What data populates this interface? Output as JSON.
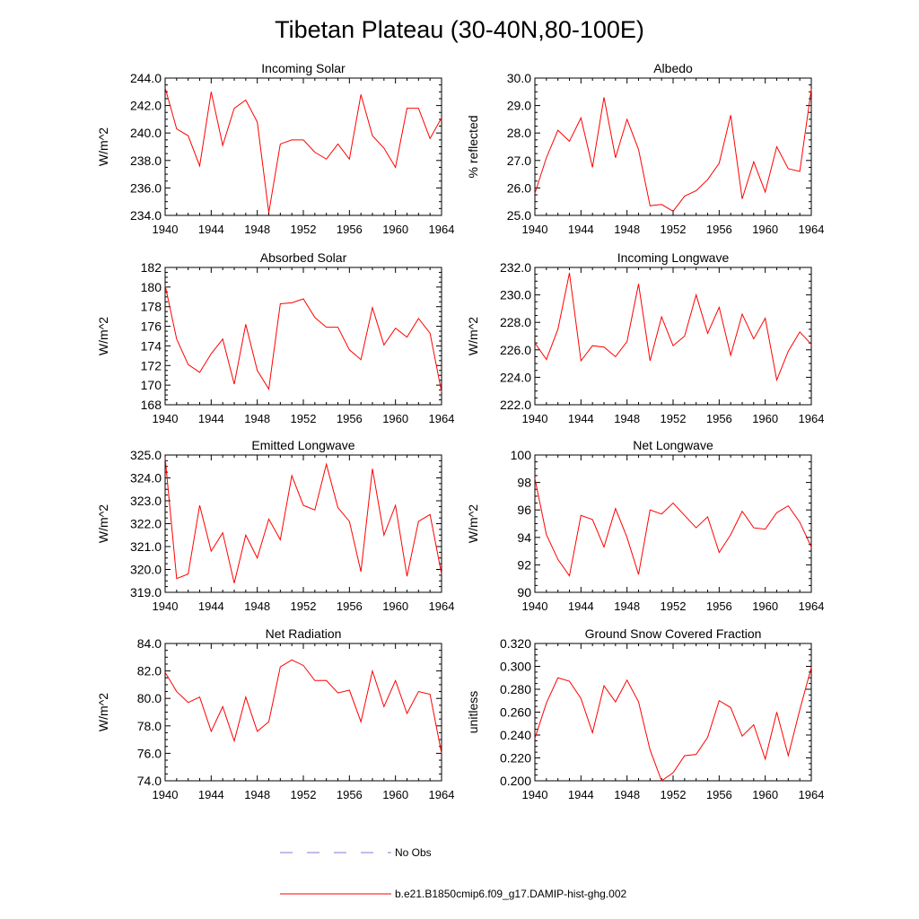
{
  "title": "Tibetan Plateau (30-40N,80-100E)",
  "colors": {
    "series": "#ff0000",
    "obs": "#7b7bd6",
    "axis": "#000000",
    "background": "#ffffff"
  },
  "legend": {
    "placement": "bottom-center",
    "items": [
      {
        "label": "No Obs",
        "style": "dashed",
        "color": "#7b7bd6"
      },
      {
        "label": "b.e21.B1850cmip6.f09_g17.DAMIP-hist-ghg.002",
        "style": "solid",
        "color": "#ff0000"
      }
    ]
  },
  "chart_data": [
    {
      "type": "line",
      "title": "Incoming Solar",
      "xlabel": "",
      "ylabel": "W/m^2",
      "xlim": [
        1940,
        1964
      ],
      "ylim": [
        234,
        244
      ],
      "xticks": [
        "1940",
        "1944",
        "1948",
        "1952",
        "1956",
        "1960",
        "1964"
      ],
      "yticks": [
        "234.0",
        "236.0",
        "238.0",
        "240.0",
        "242.0",
        "244.0"
      ],
      "x": [
        1940,
        1941,
        1942,
        1943,
        1944,
        1945,
        1946,
        1947,
        1948,
        1949,
        1950,
        1951,
        1952,
        1953,
        1954,
        1955,
        1956,
        1957,
        1958,
        1959,
        1960,
        1961,
        1962,
        1963,
        1964
      ],
      "series": [
        {
          "values": [
            243.3,
            240.3,
            239.8,
            237.6,
            243.0,
            239.1,
            241.8,
            242.4,
            240.8,
            234.2,
            239.2,
            239.5,
            239.5,
            238.6,
            238.1,
            239.2,
            238.1,
            242.8,
            239.8,
            238.9,
            237.5,
            241.8,
            241.8,
            239.6,
            241.1
          ]
        }
      ],
      "grid": false
    },
    {
      "type": "line",
      "title": "Albedo",
      "xlabel": "",
      "ylabel": "% reflected",
      "xlim": [
        1940,
        1964
      ],
      "ylim": [
        25,
        30
      ],
      "xticks": [
        "1940",
        "1944",
        "1948",
        "1952",
        "1956",
        "1960",
        "1964"
      ],
      "yticks": [
        "25.0",
        "26.0",
        "27.0",
        "28.0",
        "29.0",
        "30.0"
      ],
      "x": [
        1940,
        1941,
        1942,
        1943,
        1944,
        1945,
        1946,
        1947,
        1948,
        1949,
        1950,
        1951,
        1952,
        1953,
        1954,
        1955,
        1956,
        1957,
        1958,
        1959,
        1960,
        1961,
        1962,
        1963,
        1964
      ],
      "series": [
        {
          "values": [
            25.8,
            27.1,
            28.1,
            27.7,
            28.55,
            26.75,
            29.3,
            27.1,
            28.5,
            27.4,
            25.35,
            25.4,
            25.15,
            25.7,
            25.9,
            26.3,
            26.9,
            28.65,
            25.6,
            26.95,
            25.85,
            27.5,
            26.7,
            26.6,
            29.6
          ]
        }
      ],
      "grid": false
    },
    {
      "type": "line",
      "title": "Absorbed Solar",
      "xlabel": "",
      "ylabel": "W/m^2",
      "xlim": [
        1940,
        1964
      ],
      "ylim": [
        168,
        182
      ],
      "xticks": [
        "1940",
        "1944",
        "1948",
        "1952",
        "1956",
        "1960",
        "1964"
      ],
      "yticks": [
        "168",
        "170",
        "172",
        "174",
        "176",
        "178",
        "180",
        "182"
      ],
      "x": [
        1940,
        1941,
        1942,
        1943,
        1944,
        1945,
        1946,
        1947,
        1948,
        1949,
        1950,
        1951,
        1952,
        1953,
        1954,
        1955,
        1956,
        1957,
        1958,
        1959,
        1960,
        1961,
        1962,
        1963,
        1964
      ],
      "series": [
        {
          "values": [
            180.2,
            174.7,
            172.1,
            171.3,
            173.2,
            174.7,
            170.1,
            176.2,
            171.5,
            169.6,
            178.3,
            178.4,
            178.8,
            176.9,
            175.9,
            175.9,
            173.6,
            172.6,
            177.9,
            174.1,
            175.8,
            174.9,
            176.8,
            175.3,
            169.3
          ]
        }
      ],
      "grid": false
    },
    {
      "type": "line",
      "title": "Incoming Longwave",
      "xlabel": "",
      "ylabel": "W/m^2",
      "xlim": [
        1940,
        1964
      ],
      "ylim": [
        222,
        232
      ],
      "xticks": [
        "1940",
        "1944",
        "1948",
        "1952",
        "1956",
        "1960",
        "1964"
      ],
      "yticks": [
        "222.0",
        "224.0",
        "226.0",
        "228.0",
        "230.0",
        "232.0"
      ],
      "x": [
        1940,
        1941,
        1942,
        1943,
        1944,
        1945,
        1946,
        1947,
        1948,
        1949,
        1950,
        1951,
        1952,
        1953,
        1954,
        1955,
        1956,
        1957,
        1958,
        1959,
        1960,
        1961,
        1962,
        1963,
        1964
      ],
      "series": [
        {
          "values": [
            226.5,
            225.3,
            227.5,
            231.6,
            225.2,
            226.3,
            226.2,
            225.5,
            226.6,
            230.8,
            225.2,
            228.4,
            226.3,
            227.0,
            230.0,
            227.2,
            229.1,
            225.6,
            228.6,
            226.8,
            228.3,
            223.8,
            225.9,
            227.3,
            226.4
          ]
        }
      ],
      "grid": false
    },
    {
      "type": "line",
      "title": "Emitted Longwave",
      "xlabel": "",
      "ylabel": "W/m^2",
      "xlim": [
        1940,
        1964
      ],
      "ylim": [
        319,
        325
      ],
      "xticks": [
        "1940",
        "1944",
        "1948",
        "1952",
        "1956",
        "1960",
        "1964"
      ],
      "yticks": [
        "319.0",
        "320.0",
        "321.0",
        "322.0",
        "323.0",
        "324.0",
        "325.0"
      ],
      "x": [
        1940,
        1941,
        1942,
        1943,
        1944,
        1945,
        1946,
        1947,
        1948,
        1949,
        1950,
        1951,
        1952,
        1953,
        1954,
        1955,
        1956,
        1957,
        1958,
        1959,
        1960,
        1961,
        1962,
        1963,
        1964
      ],
      "series": [
        {
          "values": [
            324.9,
            319.6,
            319.8,
            322.8,
            320.8,
            321.6,
            319.4,
            321.5,
            320.5,
            322.2,
            321.3,
            324.1,
            322.8,
            322.6,
            324.6,
            322.7,
            322.1,
            319.9,
            324.4,
            321.5,
            322.8,
            319.7,
            322.1,
            322.4,
            319.8
          ]
        }
      ],
      "grid": false
    },
    {
      "type": "line",
      "title": "Net Longwave",
      "xlabel": "",
      "ylabel": "W/m^2",
      "xlim": [
        1940,
        1964
      ],
      "ylim": [
        90,
        100
      ],
      "xticks": [
        "1940",
        "1944",
        "1948",
        "1952",
        "1956",
        "1960",
        "1964"
      ],
      "yticks": [
        "90",
        "92",
        "94",
        "96",
        "98",
        "100"
      ],
      "x": [
        1940,
        1941,
        1942,
        1943,
        1944,
        1945,
        1946,
        1947,
        1948,
        1949,
        1950,
        1951,
        1952,
        1953,
        1954,
        1955,
        1956,
        1957,
        1958,
        1959,
        1960,
        1961,
        1962,
        1963,
        1964
      ],
      "series": [
        {
          "values": [
            98.3,
            94.2,
            92.4,
            91.2,
            95.6,
            95.3,
            93.3,
            96.1,
            94.0,
            91.3,
            96.0,
            95.7,
            96.5,
            95.6,
            94.7,
            95.5,
            92.9,
            94.2,
            95.9,
            94.7,
            94.6,
            95.8,
            96.3,
            95.1,
            93.3
          ]
        }
      ],
      "grid": false
    },
    {
      "type": "line",
      "title": "Net Radiation",
      "xlabel": "",
      "ylabel": "W/m^2",
      "xlim": [
        1940,
        1964
      ],
      "ylim": [
        74,
        84
      ],
      "xticks": [
        "1940",
        "1944",
        "1948",
        "1952",
        "1956",
        "1960",
        "1964"
      ],
      "yticks": [
        "74.0",
        "76.0",
        "78.0",
        "80.0",
        "82.0",
        "84.0"
      ],
      "x": [
        1940,
        1941,
        1942,
        1943,
        1944,
        1945,
        1946,
        1947,
        1948,
        1949,
        1950,
        1951,
        1952,
        1953,
        1954,
        1955,
        1956,
        1957,
        1958,
        1959,
        1960,
        1961,
        1962,
        1963,
        1964
      ],
      "series": [
        {
          "values": [
            81.9,
            80.5,
            79.7,
            80.1,
            77.6,
            79.4,
            76.9,
            80.1,
            77.6,
            78.3,
            82.3,
            82.8,
            82.4,
            81.3,
            81.3,
            80.4,
            80.6,
            78.3,
            82.0,
            79.4,
            81.3,
            78.9,
            80.5,
            80.3,
            76.0
          ]
        }
      ],
      "grid": false
    },
    {
      "type": "line",
      "title": "Ground Snow Covered Fraction",
      "xlabel": "",
      "ylabel": "unitless",
      "xlim": [
        1940,
        1964
      ],
      "ylim": [
        0.2,
        0.32
      ],
      "xticks": [
        "1940",
        "1944",
        "1948",
        "1952",
        "1956",
        "1960",
        "1964"
      ],
      "yticks": [
        "0.200",
        "0.220",
        "0.240",
        "0.260",
        "0.280",
        "0.300",
        "0.320"
      ],
      "x": [
        1940,
        1941,
        1942,
        1943,
        1944,
        1945,
        1946,
        1947,
        1948,
        1949,
        1950,
        1951,
        1952,
        1953,
        1954,
        1955,
        1956,
        1957,
        1958,
        1959,
        1960,
        1961,
        1962,
        1963,
        1964
      ],
      "series": [
        {
          "values": [
            0.237,
            0.268,
            0.29,
            0.287,
            0.272,
            0.242,
            0.283,
            0.269,
            0.288,
            0.269,
            0.227,
            0.2,
            0.207,
            0.222,
            0.223,
            0.238,
            0.27,
            0.264,
            0.239,
            0.249,
            0.219,
            0.26,
            0.222,
            0.262,
            0.299
          ]
        }
      ],
      "grid": false
    }
  ]
}
